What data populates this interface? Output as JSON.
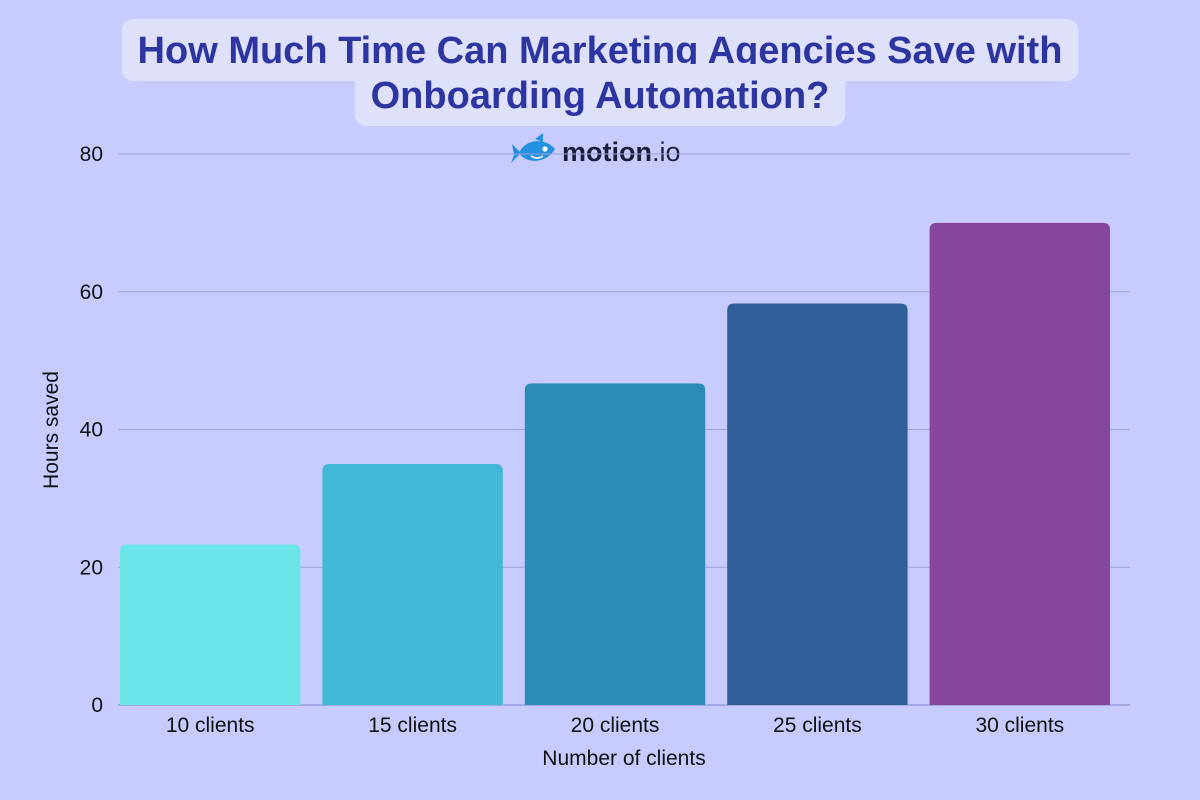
{
  "chart_data": {
    "type": "bar",
    "title_lines": [
      "How Much Time Can Marketing Agencies Save with",
      "Onboarding Automation?"
    ],
    "brand": {
      "name_bold": "motion",
      "name_regular": ".io",
      "icon": "fish-logo-icon"
    },
    "categories": [
      "10 clients",
      "15 clients",
      "20 clients",
      "25 clients",
      "30 clients"
    ],
    "values": [
      23.3,
      35.0,
      46.7,
      58.3,
      70.0
    ],
    "bar_colors": [
      "#6ce5e8",
      "#41b8d5",
      "#2d8bba",
      "#2f5f98",
      "#86469c"
    ],
    "xlabel": "Number of clients",
    "ylabel": "Hours saved",
    "ylim": [
      0,
      80
    ],
    "yticks": [
      0,
      20,
      40,
      60,
      80
    ],
    "grid": true,
    "colors": {
      "background": "#c7cbfe",
      "title": "#2d35a0",
      "title_box": "#dfe1fb",
      "grid": "#9ea2dc",
      "brand_icon": "#2390e0"
    }
  }
}
